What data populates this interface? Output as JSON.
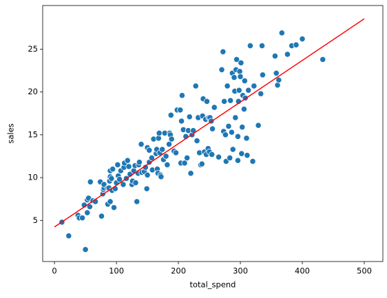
{
  "chart_data": {
    "type": "scatter",
    "x_label": "total_spend",
    "y_label": "sales",
    "xlim": [
      -19,
      530
    ],
    "ylim": [
      0.2,
      30.1
    ],
    "xticks": [
      0,
      100,
      200,
      300,
      400,
      500
    ],
    "yticks": [
      5,
      10,
      15,
      20,
      25
    ],
    "points": {
      "color": "#1f77b4",
      "x": [
        12,
        23,
        38,
        40,
        45,
        50,
        48,
        53,
        53,
        55,
        57,
        58,
        62,
        66,
        74,
        76,
        78,
        79,
        80,
        80,
        86,
        86,
        88,
        89,
        90,
        90,
        90,
        92,
        93,
        94,
        96,
        98,
        100,
        102,
        103,
        105,
        107,
        111,
        112,
        113,
        116,
        118,
        120,
        122,
        125,
        126,
        128,
        130,
        131,
        133,
        135,
        136,
        137,
        140,
        141,
        145,
        147,
        149,
        150,
        150,
        153,
        153,
        157,
        158,
        160,
        164,
        165,
        166,
        167,
        168,
        169,
        170,
        171,
        172,
        174,
        176,
        178,
        180,
        182,
        185,
        186,
        187,
        188,
        189,
        193,
        196,
        198,
        203,
        204,
        205,
        206,
        208,
        210,
        212,
        214,
        216,
        218,
        220,
        222,
        224,
        228,
        230,
        232,
        234,
        236,
        238,
        239,
        240,
        242,
        244,
        245,
        246,
        248,
        249,
        250,
        251,
        253,
        254,
        255,
        258,
        265,
        270,
        272,
        273,
        274,
        276,
        277,
        279,
        281,
        283,
        284,
        286,
        287,
        288,
        290,
        291,
        292,
        293,
        294,
        296,
        296,
        297,
        298,
        299,
        300,
        301,
        302,
        303,
        304,
        306,
        307,
        308,
        310,
        311,
        313,
        316,
        320,
        322,
        329,
        333,
        335,
        336,
        356,
        358,
        360,
        362,
        367,
        376,
        383,
        390,
        400,
        433
      ],
      "y": [
        4.8,
        3.2,
        5.6,
        5.3,
        5.3,
        1.6,
        6.8,
        5.9,
        7.4,
        7.6,
        6.6,
        9.5,
        7.3,
        7.2,
        9.5,
        5.5,
        8.1,
        8.6,
        8.8,
        9.2,
        6.9,
        8.8,
        8.8,
        9.6,
        7.2,
        10.1,
        10.8,
        9.9,
        8.5,
        11,
        6.5,
        8.7,
        9.4,
        11.5,
        10.2,
        9.8,
        10.8,
        9.2,
        11.2,
        11.7,
        9.9,
        12,
        11.3,
        10.4,
        9.2,
        9.6,
        10.8,
        11.4,
        9.4,
        7.2,
        10.5,
        11.5,
        11.8,
        13.9,
        10.6,
        10.7,
        11.2,
        8.7,
        10.3,
        13.5,
        13.2,
        11.8,
        12.3,
        10.9,
        14.5,
        12.8,
        13.3,
        11,
        10.5,
        14.6,
        15.2,
        12.9,
        10.3,
        10.1,
        13.3,
        12.1,
        15.2,
        12.5,
        11.5,
        13.9,
        15.2,
        15,
        17.3,
        14.5,
        13.1,
        12.9,
        17.9,
        17.9,
        11.7,
        16.6,
        19.6,
        15.6,
        11.7,
        14.8,
        12.3,
        15.5,
        17.1,
        10.5,
        15,
        15.5,
        20.7,
        14.3,
        17,
        12.9,
        11.5,
        11.6,
        17.2,
        19.2,
        13,
        16.8,
        12.7,
        18.9,
        13.4,
        17,
        13,
        17,
        16.6,
        12.7,
        15.7,
        18.2,
        12.4,
        22.6,
        24.7,
        15.4,
        18.9,
        15,
        11.9,
        20.7,
        16,
        12.3,
        19,
        15.3,
        22.2,
        13.3,
        21.7,
        20.1,
        17,
        22.6,
        23.8,
        12,
        14.8,
        18.9,
        20.2,
        22.4,
        21.8,
        23.4,
        12.8,
        15.9,
        19.6,
        18,
        21.3,
        19.3,
        14.6,
        12.6,
        20.2,
        25.4,
        11.9,
        20.7,
        16.1,
        19.8,
        25.4,
        22,
        24.2,
        22.2,
        20.8,
        21.4,
        26.9,
        24.4,
        25.4,
        25.5,
        26.2,
        23.8
      ]
    },
    "fit_line": {
      "color": "red",
      "x": [
        0,
        500
      ],
      "y": [
        4.24,
        28.55
      ]
    }
  }
}
